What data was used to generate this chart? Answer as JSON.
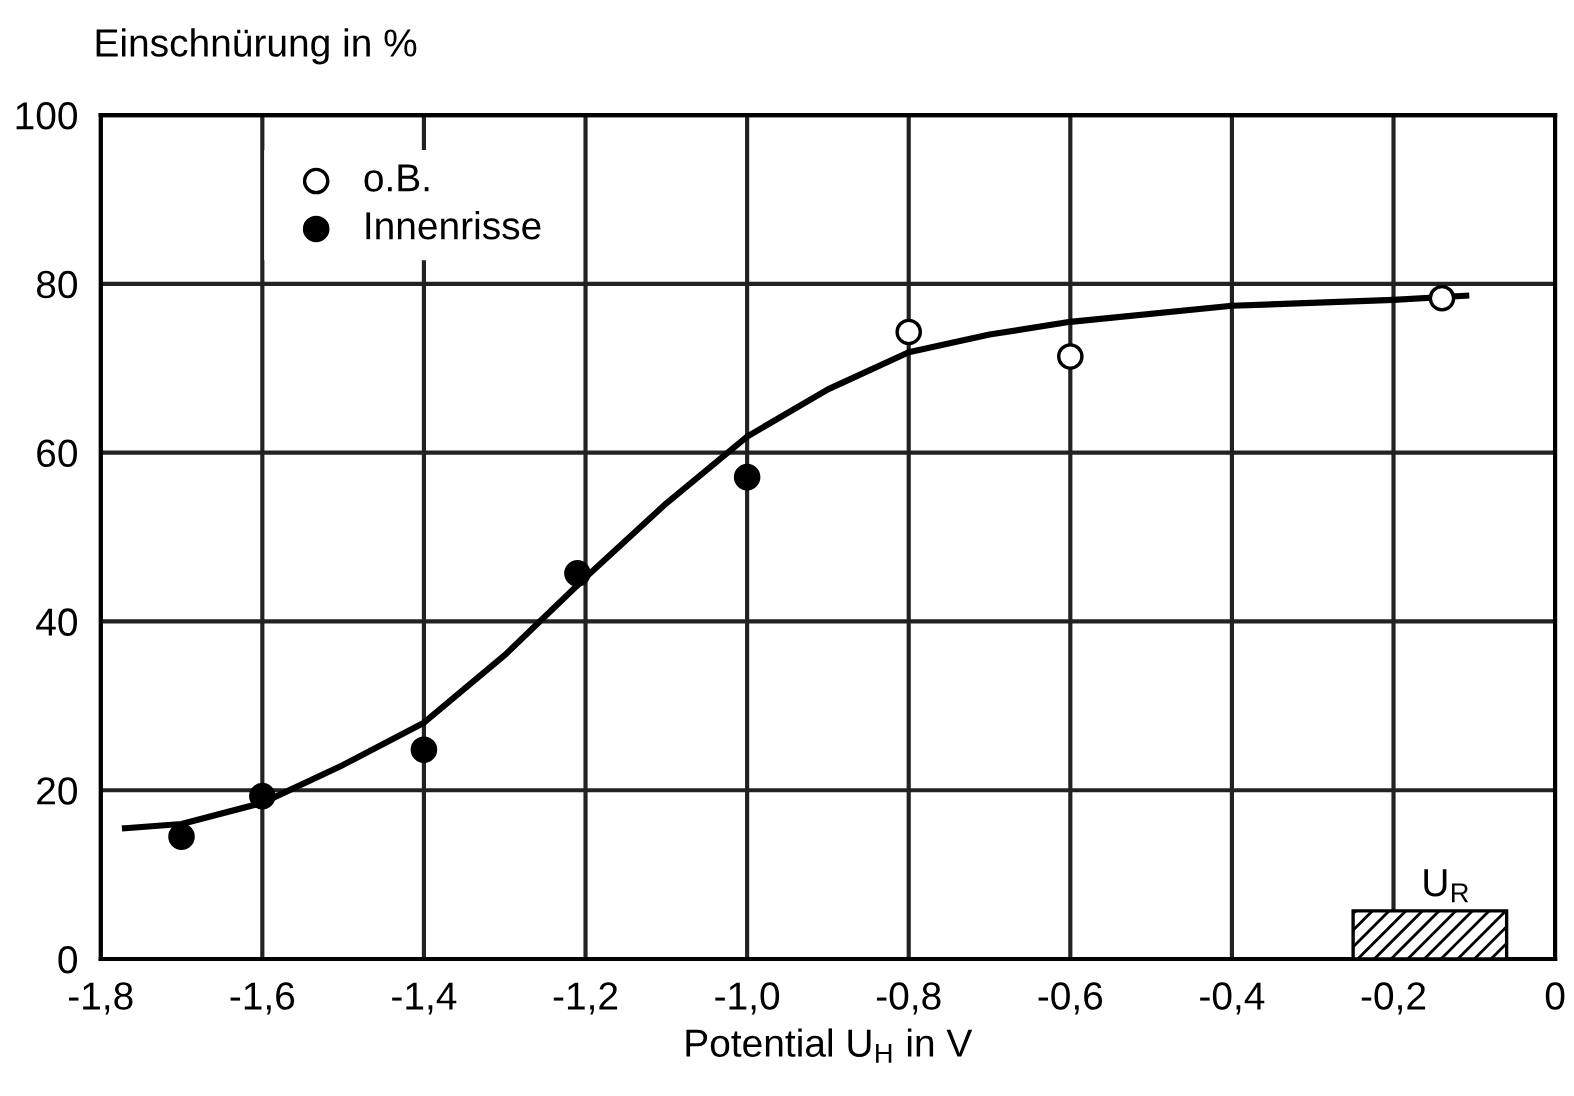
{
  "chart_data": {
    "type": "scatter",
    "xlabel": "Potential U$_{H}$ in V",
    "ylabel": "Einschnürung in %",
    "series": [
      {
        "name": "o.B.",
        "color": "#ffffff",
        "marker": "circle",
        "x": [
          -0.8,
          -0.6,
          -0.14
        ],
        "values": [
          74.3,
          71.4,
          78.3
        ]
      },
      {
        "name": "Innenrisse",
        "color": "#000000",
        "marker": "circle",
        "x": [
          -1.7,
          -1.6,
          -1.4,
          -1.21,
          -1.0
        ],
        "values": [
          14.5,
          19.3,
          24.8,
          45.7,
          57.1
        ]
      },
      {
        "type": "line",
        "color": "#000000",
        "marker": "none",
        "x": [
          -1.77,
          -1.7,
          -1.6,
          -1.5,
          -1.4,
          -1.3,
          -1.2,
          -1.1,
          -1.0,
          -0.9,
          -0.8,
          -0.7,
          -0.6,
          -0.4,
          -0.2,
          -0.11
        ],
        "values": [
          15.5,
          16,
          18.5,
          23,
          28,
          36,
          45.2,
          54,
          61.9,
          67.5,
          71.9,
          74,
          75.5,
          77.4,
          78.1,
          78.6
        ]
      }
    ],
    "bands": [
      {
        "axis": "x",
        "from": -0.25,
        "to": -0.06,
        "label": "U$_{R}$",
        "color": "#000000"
      }
    ],
    "xlim": [
      -1.8,
      0
    ],
    "ylim": [
      0,
      100
    ],
    "xticks": [
      {
        "value": -1.8,
        "label": "-1,8"
      },
      {
        "value": -1.6,
        "label": "-1,6"
      },
      {
        "value": -1.4,
        "label": "-1,4"
      },
      {
        "value": -1.2,
        "label": "-1,2"
      },
      {
        "value": -1.0,
        "label": "-1,0"
      },
      {
        "value": -0.8,
        "label": "-0,8"
      },
      {
        "value": -0.6,
        "label": "-0,6"
      },
      {
        "value": -0.4,
        "label": "-0,4"
      },
      {
        "value": -0.2,
        "label": "-0,2"
      },
      0
    ],
    "yticks": [
      0,
      20,
      40,
      60,
      80,
      100
    ],
    "grid": true,
    "legend": "top left"
  }
}
